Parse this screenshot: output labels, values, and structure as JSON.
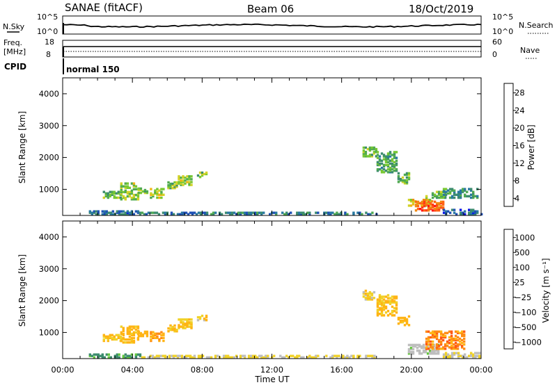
{
  "header": {
    "station": "SANAE (fitACF)",
    "beam": "Beam 06",
    "date": "18/Oct/2019"
  },
  "top_panels": {
    "nsky_label": "N.Sky",
    "nsky_ticks": [
      "10^5",
      "10^0"
    ],
    "nsearch_label": "N.Search",
    "nsearch_ticks": [
      "10^5",
      "10^0"
    ],
    "freq_label": "Freq.",
    "freq_unit": "[MHz]",
    "freq_ticks": [
      "18",
      "8"
    ],
    "nave_label": "Nave",
    "nave_ticks": [
      "60",
      "0"
    ],
    "cpid_label": "CPID",
    "cpid_value": "normal 150"
  },
  "chart_data": [
    {
      "type": "heatmap",
      "name": "power-panel",
      "ylabel": "Slant Range [km]",
      "xlim": [
        0,
        24
      ],
      "ylim": [
        180,
        4500
      ],
      "yticks": [
        "4000",
        "3000",
        "2000",
        "1000"
      ],
      "colorbar": {
        "label": "Power [dB]",
        "ticks": [
          "28",
          "24",
          "20",
          "16",
          "12",
          "8",
          "4"
        ],
        "colors": [
          "#0a14e6",
          "#1e50b4",
          "#2878a0",
          "#3c8c6e",
          "#50aa50",
          "#78c832",
          "#d2d228",
          "#f0b414",
          "#f08c14",
          "#ff6414",
          "#ff3c14",
          "#ff1414"
        ]
      },
      "patches": [
        {
          "t": [
            2.3,
            3.3
          ],
          "r": [
            700,
            900
          ],
          "v": 14
        },
        {
          "t": [
            3.3,
            4.3
          ],
          "r": [
            650,
            1150
          ],
          "v": 16
        },
        {
          "t": [
            4.3,
            4.9
          ],
          "r": [
            850,
            1000
          ],
          "v": 15
        },
        {
          "t": [
            5.0,
            5.8
          ],
          "r": [
            700,
            1000
          ],
          "v": 17
        },
        {
          "t": [
            6.0,
            6.6
          ],
          "r": [
            1000,
            1200
          ],
          "v": 15
        },
        {
          "t": [
            6.6,
            7.4
          ],
          "r": [
            1100,
            1400
          ],
          "v": 16
        },
        {
          "t": [
            7.7,
            8.2
          ],
          "r": [
            1350,
            1500
          ],
          "v": 15
        },
        {
          "t": [
            17.2,
            18.0
          ],
          "r": [
            2000,
            2300
          ],
          "v": 14
        },
        {
          "t": [
            18.0,
            19.2
          ],
          "r": [
            1500,
            2150
          ],
          "v": 13
        },
        {
          "t": [
            19.2,
            19.9
          ],
          "r": [
            1150,
            1500
          ],
          "v": 14
        },
        {
          "t": [
            19.8,
            21.2
          ],
          "r": [
            450,
            650
          ],
          "v": 20
        },
        {
          "t": [
            20.2,
            21.8
          ],
          "r": [
            300,
            600
          ],
          "v": 26
        },
        {
          "t": [
            20.8,
            22.0
          ],
          "r": [
            700,
            900
          ],
          "v": 14
        },
        {
          "t": [
            21.8,
            23.8
          ],
          "r": [
            700,
            1000
          ],
          "v": 11
        },
        {
          "t": [
            1.5,
            4.5
          ],
          "r": [
            180,
            300
          ],
          "v": 8
        },
        {
          "t": [
            4.5,
            18.0
          ],
          "r": [
            180,
            260
          ],
          "v": 9
        },
        {
          "t": [
            21.8,
            24.0
          ],
          "r": [
            180,
            320
          ],
          "v": 8
        }
      ]
    },
    {
      "type": "heatmap",
      "name": "velocity-panel",
      "ylabel": "Slant Range [km]",
      "xlabel": "Time UT",
      "xlim": [
        0,
        24
      ],
      "ylim": [
        180,
        4500
      ],
      "xticks": [
        "00:00",
        "04:00",
        "08:00",
        "12:00",
        "16:00",
        "20:00",
        "00:00"
      ],
      "yticks": [
        "4000",
        "3000",
        "2000",
        "1000"
      ],
      "colorbar": {
        "label": "Velocity [m s⁻¹]",
        "ticks": [
          "1000",
          "500",
          "100",
          "25",
          "−25",
          "−100",
          "−500",
          "−1000"
        ],
        "colors": [
          "#e61414",
          "#ff5a14",
          "#ff8c14",
          "#ffb414",
          "#f0d228",
          "#bebebe",
          "#bebebe",
          "#64c83c",
          "#3c8c6e",
          "#2864a0",
          "#1e3cc8",
          "#1414dc"
        ]
      },
      "patches": [
        {
          "t": [
            2.3,
            3.3
          ],
          "r": [
            700,
            900
          ],
          "v": -100
        },
        {
          "t": [
            3.3,
            4.3
          ],
          "r": [
            650,
            1150
          ],
          "v": -150
        },
        {
          "t": [
            4.3,
            4.9
          ],
          "r": [
            850,
            1000
          ],
          "v": -200
        },
        {
          "t": [
            5.0,
            5.8
          ],
          "r": [
            700,
            1000
          ],
          "v": -300
        },
        {
          "t": [
            6.0,
            6.6
          ],
          "r": [
            1000,
            1200
          ],
          "v": -120
        },
        {
          "t": [
            6.6,
            7.4
          ],
          "r": [
            1100,
            1400
          ],
          "v": -100
        },
        {
          "t": [
            7.7,
            8.2
          ],
          "r": [
            1350,
            1500
          ],
          "v": -80
        },
        {
          "t": [
            17.2,
            18.0
          ],
          "r": [
            2000,
            2300
          ],
          "v": -80
        },
        {
          "t": [
            18.0,
            19.2
          ],
          "r": [
            1500,
            2150
          ],
          "v": -120
        },
        {
          "t": [
            19.2,
            19.9
          ],
          "r": [
            1150,
            1500
          ],
          "v": -150
        },
        {
          "t": [
            19.8,
            21.6
          ],
          "r": [
            300,
            600
          ],
          "v": 0
        },
        {
          "t": [
            20.8,
            23.0
          ],
          "r": [
            450,
            1000
          ],
          "v": -400
        },
        {
          "t": [
            1.5,
            4.5
          ],
          "r": [
            180,
            300
          ],
          "v": 60
        },
        {
          "t": [
            4.5,
            18.0
          ],
          "r": [
            180,
            260
          ],
          "v": -60
        },
        {
          "t": [
            21.8,
            24.0
          ],
          "r": [
            180,
            320
          ],
          "v": -40
        }
      ]
    }
  ]
}
